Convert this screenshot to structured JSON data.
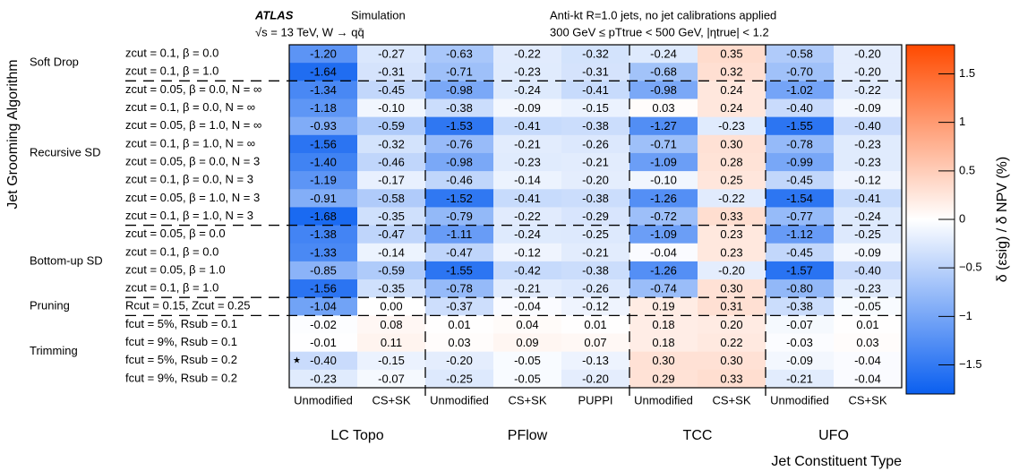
{
  "chart_data": {
    "type": "heatmap",
    "header": {
      "experiment": "ATLAS",
      "label": "Simulation",
      "energy": "√s = 13 TeV, W → qq̄",
      "jets": "Anti-kt R=1.0 jets, no jet calibrations applied",
      "cuts": "300 GeV ≤ pTtrue < 500 GeV, |ηtrue| < 1.2"
    },
    "ylabel": "Jet Grooming Algorithm",
    "xlabel": "Jet Constituent Type",
    "colorbar_label": "δ (εsig) / δ NPV (%)",
    "annotation": "★",
    "row_groups": [
      {
        "name": "Soft Drop",
        "rows": [
          "zcut = 0.1, β = 0.0",
          "zcut = 0.1, β = 1.0"
        ]
      },
      {
        "name": "Recursive SD",
        "rows": [
          "zcut = 0.05, β = 0.0, N = ∞",
          "zcut = 0.1, β = 0.0, N = ∞",
          "zcut = 0.05, β = 1.0, N = ∞",
          "zcut = 0.1, β = 1.0, N = ∞",
          "zcut = 0.05, β = 0.0, N = 3",
          "zcut = 0.1, β = 0.0, N = 3",
          "zcut = 0.05, β = 1.0, N = 3",
          "zcut = 0.1, β = 1.0, N = 3"
        ]
      },
      {
        "name": "Bottom-up SD",
        "rows": [
          "zcut = 0.05, β = 0.0",
          "zcut = 0.1, β = 0.0",
          "zcut = 0.05, β = 1.0",
          "zcut = 0.1, β = 1.0"
        ]
      },
      {
        "name": "Pruning",
        "rows": [
          "Rcut = 0.15, Zcut = 0.25"
        ]
      },
      {
        "name": "Trimming",
        "rows": [
          "fcut = 5%, Rsub = 0.1",
          "fcut = 9%, Rsub = 0.1",
          "fcut = 5%, Rsub = 0.2",
          "fcut = 9%, Rsub = 0.2"
        ]
      }
    ],
    "column_groups": [
      {
        "name": "LC Topo",
        "columns": [
          "Unmodified",
          "CS+SK"
        ]
      },
      {
        "name": "PFlow",
        "columns": [
          "Unmodified",
          "CS+SK",
          "PUPPI"
        ]
      },
      {
        "name": "TCC",
        "columns": [
          "Unmodified",
          "CS+SK"
        ]
      },
      {
        "name": "UFO",
        "columns": [
          "Unmodified",
          "CS+SK"
        ]
      }
    ],
    "values": [
      [
        -1.2,
        -0.27,
        -0.63,
        -0.22,
        -0.32,
        -0.24,
        0.35,
        -0.58,
        -0.2
      ],
      [
        -1.64,
        -0.31,
        -0.71,
        -0.23,
        -0.31,
        -0.68,
        0.32,
        -0.7,
        -0.2
      ],
      [
        -1.34,
        -0.45,
        -0.98,
        -0.24,
        -0.41,
        -0.98,
        0.24,
        -1.02,
        -0.22
      ],
      [
        -1.18,
        -0.1,
        -0.38,
        -0.09,
        -0.15,
        0.03,
        0.24,
        -0.4,
        -0.09
      ],
      [
        -0.93,
        -0.59,
        -1.53,
        -0.41,
        -0.38,
        -1.27,
        -0.23,
        -1.55,
        -0.4
      ],
      [
        -1.56,
        -0.32,
        -0.76,
        -0.21,
        -0.26,
        -0.71,
        0.3,
        -0.78,
        -0.23
      ],
      [
        -1.4,
        -0.46,
        -0.98,
        -0.23,
        -0.21,
        -1.09,
        0.28,
        -0.99,
        -0.23
      ],
      [
        -1.19,
        -0.17,
        -0.46,
        -0.14,
        -0.2,
        -0.1,
        0.25,
        -0.45,
        -0.12
      ],
      [
        -0.91,
        -0.58,
        -1.52,
        -0.41,
        -0.38,
        -1.26,
        -0.22,
        -1.54,
        -0.41
      ],
      [
        -1.68,
        -0.35,
        -0.79,
        -0.22,
        -0.29,
        -0.72,
        0.33,
        -0.77,
        -0.24
      ],
      [
        -1.38,
        -0.47,
        -1.11,
        -0.24,
        -0.25,
        -1.09,
        0.23,
        -1.12,
        -0.25
      ],
      [
        -1.33,
        -0.14,
        -0.47,
        -0.12,
        -0.21,
        -0.04,
        0.23,
        -0.45,
        -0.09
      ],
      [
        -0.85,
        -0.59,
        -1.55,
        -0.42,
        -0.38,
        -1.26,
        -0.2,
        -1.57,
        -0.4
      ],
      [
        -1.56,
        -0.35,
        -0.78,
        -0.21,
        -0.26,
        -0.74,
        0.3,
        -0.8,
        -0.23
      ],
      [
        -1.04,
        0.0,
        -0.37,
        -0.04,
        -0.12,
        0.19,
        0.31,
        -0.38,
        -0.05
      ],
      [
        -0.02,
        0.08,
        0.01,
        0.04,
        0.01,
        0.18,
        0.2,
        -0.07,
        0.01
      ],
      [
        -0.01,
        0.11,
        0.03,
        0.09,
        0.07,
        0.18,
        0.22,
        -0.03,
        0.03
      ],
      [
        -0.4,
        -0.15,
        -0.2,
        -0.05,
        -0.13,
        0.3,
        0.3,
        -0.09,
        -0.04
      ],
      [
        -0.23,
        -0.07,
        -0.25,
        -0.05,
        -0.2,
        0.29,
        0.33,
        -0.21,
        -0.04
      ]
    ],
    "value_labels": [
      [
        "-1.20",
        "-0.27",
        "-0.63",
        "-0.22",
        "-0.32",
        "-0.24",
        "0.35",
        "-0.58",
        "-0.20"
      ],
      [
        "-1.64",
        "-0.31",
        "-0.71",
        "-0.23",
        "-0.31",
        "-0.68",
        "0.32",
        "-0.70",
        "-0.20"
      ],
      [
        "-1.34",
        "-0.45",
        "-0.98",
        "-0.24",
        "-0.41",
        "-0.98",
        "0.24",
        "-1.02",
        "-0.22"
      ],
      [
        "-1.18",
        "-0.10",
        "-0.38",
        "-0.09",
        "-0.15",
        "0.03",
        "0.24",
        "-0.40",
        "-0.09"
      ],
      [
        "-0.93",
        "-0.59",
        "-1.53",
        "-0.41",
        "-0.38",
        "-1.27",
        "-0.23",
        "-1.55",
        "-0.40"
      ],
      [
        "-1.56",
        "-0.32",
        "-0.76",
        "-0.21",
        "-0.26",
        "-0.71",
        "0.30",
        "-0.78",
        "-0.23"
      ],
      [
        "-1.40",
        "-0.46",
        "-0.98",
        "-0.23",
        "-0.21",
        "-1.09",
        "0.28",
        "-0.99",
        "-0.23"
      ],
      [
        "-1.19",
        "-0.17",
        "-0.46",
        "-0.14",
        "-0.20",
        "-0.10",
        "0.25",
        "-0.45",
        "-0.12"
      ],
      [
        "-0.91",
        "-0.58",
        "-1.52",
        "-0.41",
        "-0.38",
        "-1.26",
        "-0.22",
        "-1.54",
        "-0.41"
      ],
      [
        "-1.68",
        "-0.35",
        "-0.79",
        "-0.22",
        "-0.29",
        "-0.72",
        "0.33",
        "-0.77",
        "-0.24"
      ],
      [
        "-1.38",
        "-0.47",
        "-1.11",
        "-0.24",
        "-0.25",
        "-1.09",
        "0.23",
        "-1.12",
        "-0.25"
      ],
      [
        "-1.33",
        "-0.14",
        "-0.47",
        "-0.12",
        "-0.21",
        "-0.04",
        "0.23",
        "-0.45",
        "-0.09"
      ],
      [
        "-0.85",
        "-0.59",
        "-1.55",
        "-0.42",
        "-0.38",
        "-1.26",
        "-0.20",
        "-1.57",
        "-0.40"
      ],
      [
        "-1.56",
        "-0.35",
        "-0.78",
        "-0.21",
        "-0.26",
        "-0.74",
        "0.30",
        "-0.80",
        "-0.23"
      ],
      [
        "-1.04",
        "0.00",
        "-0.37",
        "-0.04",
        "-0.12",
        "0.19",
        "0.31",
        "-0.38",
        "-0.05"
      ],
      [
        "-0.02",
        "0.08",
        "0.01",
        "0.04",
        "0.01",
        "0.18",
        "0.20",
        "-0.07",
        "0.01"
      ],
      [
        "-0.01",
        "0.11",
        "0.03",
        "0.09",
        "0.07",
        "0.18",
        "0.22",
        "-0.03",
        "0.03"
      ],
      [
        "-0.40",
        "-0.15",
        "-0.20",
        "-0.05",
        "-0.13",
        "0.30",
        "0.30",
        "-0.09",
        "-0.04"
      ],
      [
        "-0.23",
        "-0.07",
        "-0.25",
        "-0.05",
        "-0.20",
        "0.29",
        "0.33",
        "-0.21",
        "-0.04"
      ]
    ],
    "zlim": [
      -1.8,
      1.8
    ],
    "zticks": [
      1.5,
      1,
      0.5,
      0,
      {
        "value": -0.5,
        "label": "−0.5"
      },
      {
        "value": -1,
        "label": "−1"
      },
      {
        "value": -1.5,
        "label": "−1.5"
      }
    ],
    "colors": {
      "low": "#0a5ff0",
      "zero": "#ffffff",
      "high": "#ff4a00"
    }
  }
}
